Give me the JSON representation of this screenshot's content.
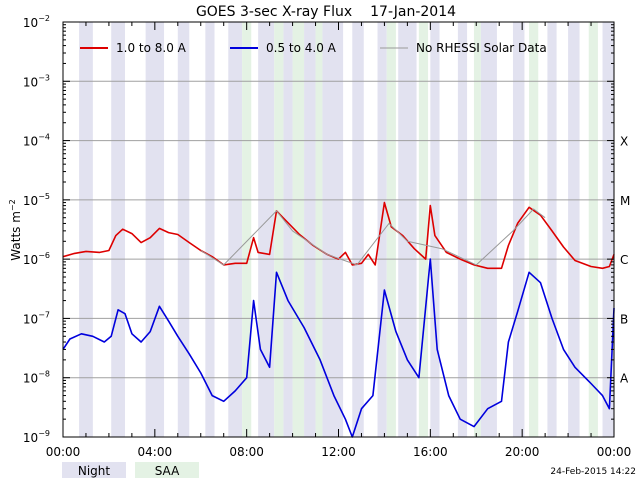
{
  "chart_data": {
    "type": "line",
    "title": "GOES 3-sec X-ray Flux",
    "date": "17-Jan-2014",
    "ylabel": "Watts m",
    "ylabel_sup": "−2",
    "y_scale": "log",
    "ylim": [
      1e-09,
      0.01
    ],
    "y_ticks": [
      {
        "value": 0.01,
        "mantissa": "10",
        "exp": "−2"
      },
      {
        "value": 0.001,
        "mantissa": "10",
        "exp": "−3"
      },
      {
        "value": 0.0001,
        "mantissa": "10",
        "exp": "−4"
      },
      {
        "value": 1e-05,
        "mantissa": "10",
        "exp": "−5"
      },
      {
        "value": 1e-06,
        "mantissa": "10",
        "exp": "−6"
      },
      {
        "value": 1e-07,
        "mantissa": "10",
        "exp": "−7"
      },
      {
        "value": 1e-08,
        "mantissa": "10",
        "exp": "−8"
      },
      {
        "value": 1e-09,
        "mantissa": "10",
        "exp": "−9"
      }
    ],
    "xlim": [
      0,
      24
    ],
    "x_unit": "hours UT",
    "x_ticks": [
      {
        "value": 0,
        "label": "00:00"
      },
      {
        "value": 4,
        "label": "04:00"
      },
      {
        "value": 8,
        "label": "08:00"
      },
      {
        "value": 12,
        "label": "12:00"
      },
      {
        "value": 16,
        "label": "16:00"
      },
      {
        "value": 20,
        "label": "20:00"
      },
      {
        "value": 24,
        "label": "00:00"
      }
    ],
    "flare_classes": [
      {
        "label": "X",
        "value": 0.0001
      },
      {
        "label": "M",
        "value": 1e-05
      },
      {
        "label": "C",
        "value": 1e-06
      },
      {
        "label": "B",
        "value": 1e-07
      },
      {
        "label": "A",
        "value": 1e-08
      }
    ],
    "grid": true,
    "legend_position": "top",
    "series": [
      {
        "name": "1.0 to 8.0 A",
        "color": "#dd0000",
        "points": [
          [
            0,
            1.1e-06
          ],
          [
            0.5,
            1.25e-06
          ],
          [
            1.0,
            1.35e-06
          ],
          [
            1.6,
            1.3e-06
          ],
          [
            2.0,
            1.4e-06
          ],
          [
            2.3,
            2.5e-06
          ],
          [
            2.6,
            3.2e-06
          ],
          [
            3.0,
            2.7e-06
          ],
          [
            3.4,
            1.9e-06
          ],
          [
            3.8,
            2.3e-06
          ],
          [
            4.2,
            3.3e-06
          ],
          [
            4.6,
            2.8e-06
          ],
          [
            5.0,
            2.6e-06
          ],
          [
            5.5,
            1.9e-06
          ],
          [
            6.0,
            1.4e-06
          ],
          [
            6.5,
            1.1e-06
          ],
          [
            7.0,
            8e-07
          ],
          [
            7.5,
            8.5e-07
          ],
          [
            8.0,
            8.5e-07
          ],
          [
            8.3,
            2.3e-06
          ],
          [
            8.5,
            1.3e-06
          ],
          [
            9.0,
            1.2e-06
          ],
          [
            9.3,
            6.5e-06
          ],
          [
            9.7,
            4.5e-06
          ],
          [
            10.3,
            2.6e-06
          ],
          [
            10.9,
            1.7e-06
          ],
          [
            11.5,
            1.2e-06
          ],
          [
            12.0,
            1e-06
          ],
          [
            12.3,
            1.3e-06
          ],
          [
            12.6,
            8e-07
          ],
          [
            13.0,
            8.5e-07
          ],
          [
            13.3,
            1.2e-06
          ],
          [
            13.6,
            8e-07
          ],
          [
            14.0,
            9e-06
          ],
          [
            14.3,
            3.5e-06
          ],
          [
            14.8,
            2.5e-06
          ],
          [
            15.3,
            1.5e-06
          ],
          [
            15.8,
            1e-06
          ],
          [
            16.0,
            8e-06
          ],
          [
            16.2,
            2.5e-06
          ],
          [
            16.7,
            1.3e-06
          ],
          [
            17.3,
            1e-06
          ],
          [
            17.9,
            8e-07
          ],
          [
            18.5,
            7e-07
          ],
          [
            19.1,
            7e-07
          ],
          [
            19.4,
            1.7e-06
          ],
          [
            19.8,
            4e-06
          ],
          [
            20.3,
            7.5e-06
          ],
          [
            20.8,
            5.5e-06
          ],
          [
            21.3,
            3e-06
          ],
          [
            21.8,
            1.6e-06
          ],
          [
            22.3,
            9.5e-07
          ],
          [
            23.0,
            7.5e-07
          ],
          [
            23.5,
            7e-07
          ],
          [
            23.8,
            7.5e-07
          ],
          [
            24.0,
            1.2e-06
          ]
        ]
      },
      {
        "name": "0.5 to 4.0 A",
        "color": "#0000dd",
        "points": [
          [
            0,
            3e-08
          ],
          [
            0.3,
            4.5e-08
          ],
          [
            0.8,
            5.5e-08
          ],
          [
            1.3,
            5e-08
          ],
          [
            1.8,
            4e-08
          ],
          [
            2.1,
            5e-08
          ],
          [
            2.4,
            1.4e-07
          ],
          [
            2.7,
            1.2e-07
          ],
          [
            3.0,
            5.5e-08
          ],
          [
            3.4,
            4e-08
          ],
          [
            3.8,
            6e-08
          ],
          [
            4.2,
            1.6e-07
          ],
          [
            4.6,
            9e-08
          ],
          [
            5.0,
            5e-08
          ],
          [
            5.5,
            2.5e-08
          ],
          [
            6.0,
            1.2e-08
          ],
          [
            6.5,
            5e-09
          ],
          [
            7.0,
            4e-09
          ],
          [
            7.5,
            6e-09
          ],
          [
            8.0,
            1e-08
          ],
          [
            8.3,
            2e-07
          ],
          [
            8.6,
            3e-08
          ],
          [
            9.0,
            1.5e-08
          ],
          [
            9.3,
            6e-07
          ],
          [
            9.8,
            2e-07
          ],
          [
            10.5,
            7e-08
          ],
          [
            11.2,
            2e-08
          ],
          [
            11.8,
            5e-09
          ],
          [
            12.3,
            2e-09
          ],
          [
            12.6,
            1e-09
          ],
          [
            13.0,
            3e-09
          ],
          [
            13.5,
            5e-09
          ],
          [
            14.0,
            3e-07
          ],
          [
            14.5,
            6e-08
          ],
          [
            15.0,
            2e-08
          ],
          [
            15.5,
            1e-08
          ],
          [
            16.0,
            1e-06
          ],
          [
            16.3,
            3e-08
          ],
          [
            16.8,
            5e-09
          ],
          [
            17.3,
            2e-09
          ],
          [
            17.9,
            1.5e-09
          ],
          [
            18.5,
            3e-09
          ],
          [
            19.1,
            4e-09
          ],
          [
            19.4,
            4e-08
          ],
          [
            19.8,
            1.3e-07
          ],
          [
            20.3,
            6e-07
          ],
          [
            20.8,
            4e-07
          ],
          [
            21.3,
            1e-07
          ],
          [
            21.8,
            3e-08
          ],
          [
            22.3,
            1.5e-08
          ],
          [
            23.0,
            8e-09
          ],
          [
            23.5,
            5e-09
          ],
          [
            23.8,
            3e-09
          ],
          [
            24.0,
            1.5e-07
          ]
        ]
      },
      {
        "name": "No RHESSI Solar Data",
        "color": "#999999",
        "points": [
          [
            6.0,
            1.4e-06
          ],
          [
            7.0,
            8e-07
          ],
          [
            9.3,
            6.5e-06
          ],
          [
            10.0,
            3e-06
          ],
          [
            11.5,
            1.2e-06
          ],
          [
            12.8,
            8e-07
          ],
          [
            14.2,
            4e-06
          ],
          [
            15.0,
            2e-06
          ],
          [
            16.5,
            1.5e-06
          ],
          [
            18.0,
            8e-07
          ],
          [
            19.6,
            3e-06
          ],
          [
            20.5,
            7e-06
          ],
          [
            21.0,
            5e-06
          ]
        ]
      }
    ],
    "night_intervals": [
      [
        0.7,
        1.3
      ],
      [
        2.1,
        2.7
      ],
      [
        3.6,
        4.4
      ],
      [
        5.0,
        5.5
      ],
      [
        6.2,
        6.6
      ],
      [
        7.2,
        7.8
      ],
      [
        8.5,
        9.2
      ],
      [
        9.6,
        10.0
      ],
      [
        10.5,
        11.0
      ],
      [
        11.3,
        12.2
      ],
      [
        12.6,
        13.1
      ],
      [
        13.7,
        14.1
      ],
      [
        14.6,
        15.4
      ],
      [
        16.0,
        16.4
      ],
      [
        17.2,
        17.6
      ],
      [
        18.2,
        18.9
      ],
      [
        19.6,
        20.1
      ],
      [
        21.1,
        21.5
      ],
      [
        22.0,
        22.5
      ],
      [
        23.5,
        24.0
      ]
    ],
    "saa_intervals": [
      [
        7.8,
        8.2
      ],
      [
        9.2,
        9.6
      ],
      [
        10.0,
        10.5
      ],
      [
        11.0,
        11.3
      ],
      [
        14.1,
        14.5
      ],
      [
        15.5,
        15.9
      ],
      [
        17.9,
        18.2
      ],
      [
        20.3,
        20.7
      ],
      [
        22.9,
        23.3
      ]
    ],
    "bottom_legend": [
      {
        "label": "Night",
        "color": "#e2e2f0"
      },
      {
        "label": "SAA",
        "color": "#e4f2e4"
      }
    ],
    "footer_timestamp": "24-Feb-2015 14:22"
  }
}
